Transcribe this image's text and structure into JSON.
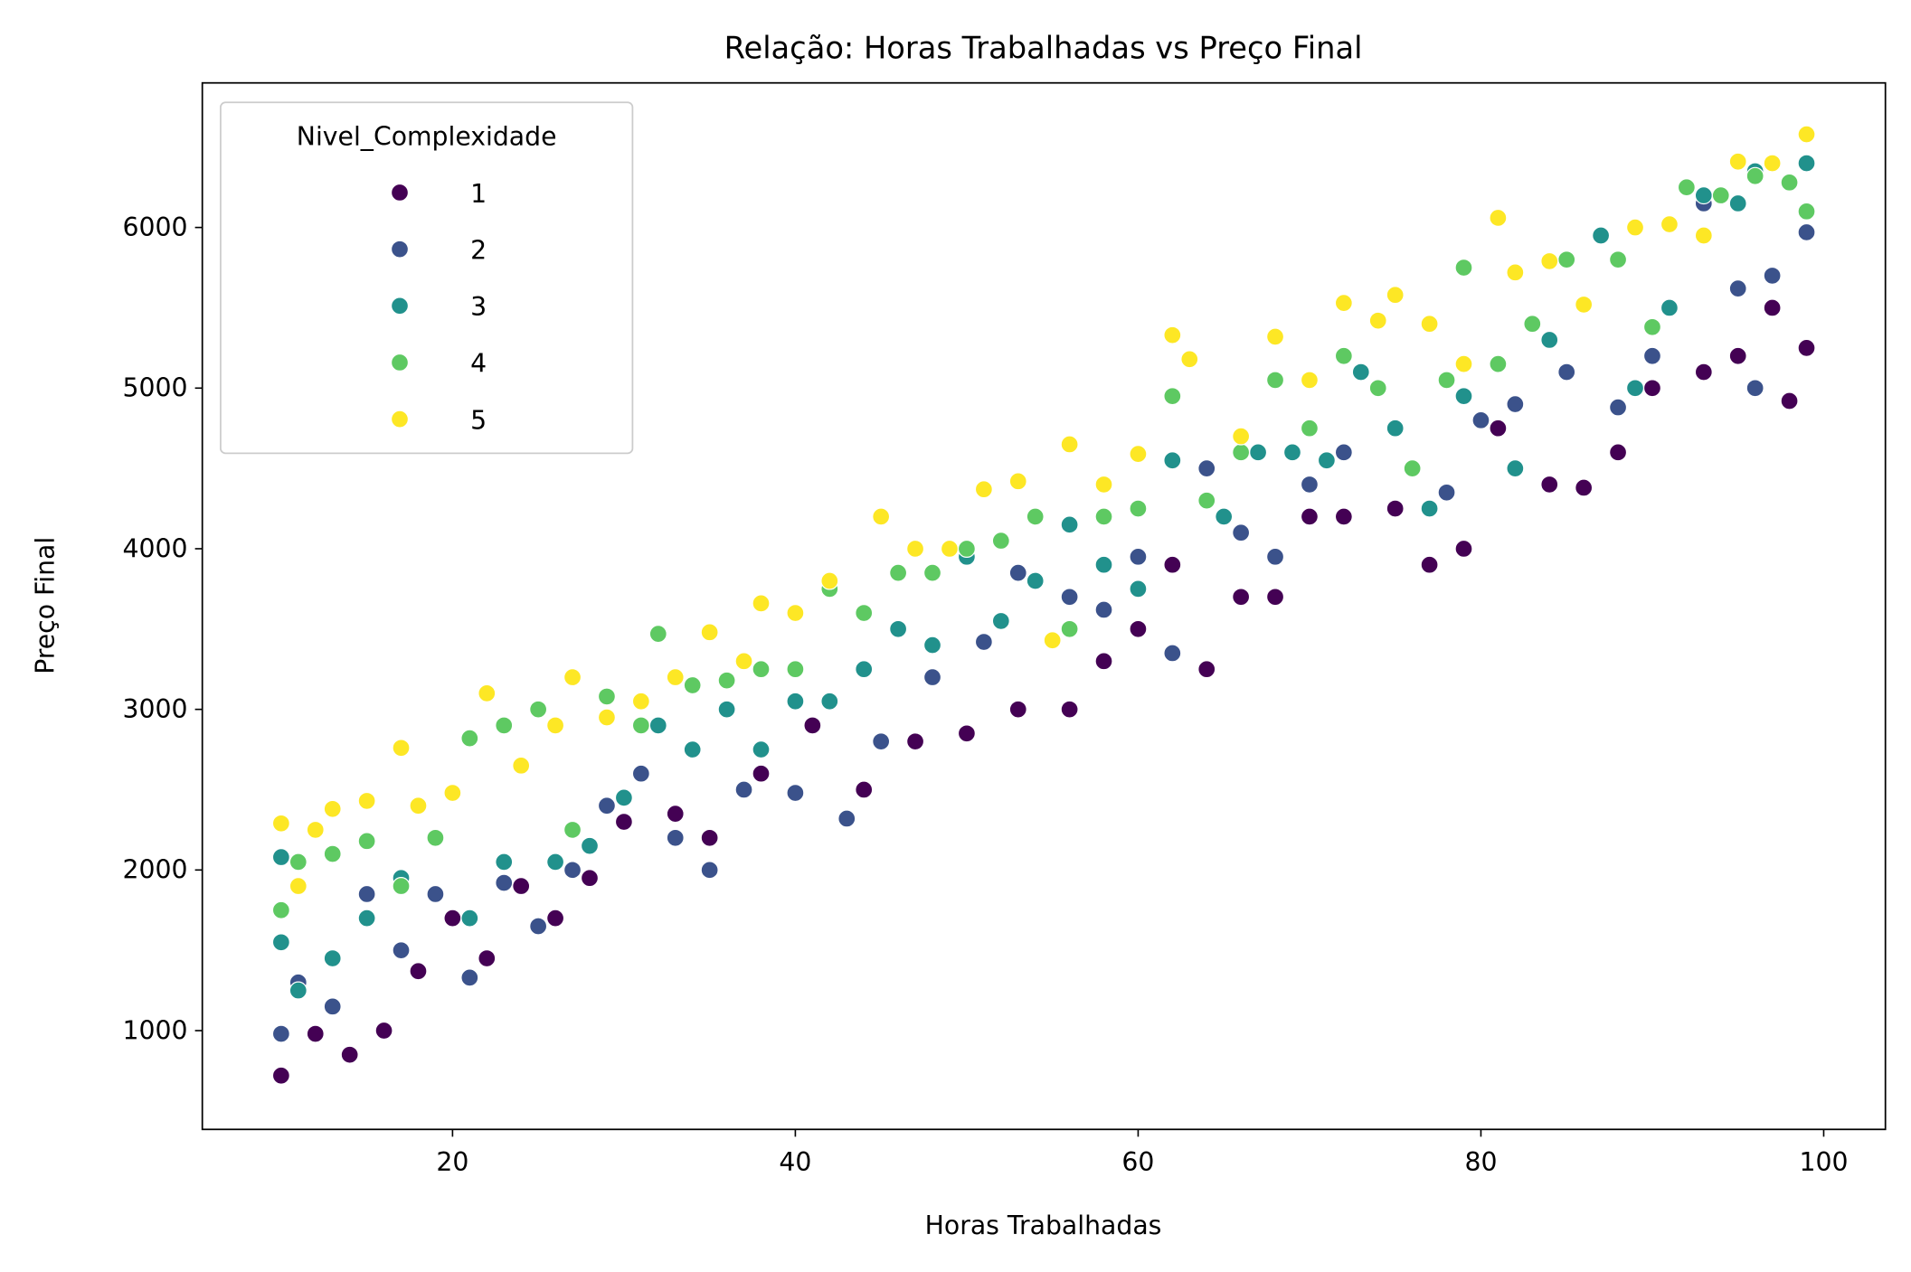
{
  "chart_data": {
    "type": "scatter",
    "title": "Relação: Horas Trabalhadas vs Preço Final",
    "xlabel": "Horas Trabalhadas",
    "ylabel": "Preço Final",
    "xlim": [
      5.4,
      103.6
    ],
    "ylim": [
      385,
      6900
    ],
    "xticks": [
      20,
      40,
      60,
      80,
      100
    ],
    "yticks": [
      1000,
      2000,
      3000,
      4000,
      5000,
      6000
    ],
    "grid": false,
    "legend": {
      "title": "Nivel_Complexidade",
      "placement": "top-left"
    },
    "series": [
      {
        "name": "1",
        "color": "#440154",
        "points": [
          [
            10,
            720
          ],
          [
            12,
            980
          ],
          [
            14,
            850
          ],
          [
            16,
            1000
          ],
          [
            18,
            1370
          ],
          [
            20,
            1700
          ],
          [
            22,
            1450
          ],
          [
            24,
            1900
          ],
          [
            26,
            1700
          ],
          [
            28,
            1950
          ],
          [
            30,
            2300
          ],
          [
            33,
            2350
          ],
          [
            35,
            2200
          ],
          [
            38,
            2600
          ],
          [
            41,
            2900
          ],
          [
            44,
            2500
          ],
          [
            47,
            2800
          ],
          [
            50,
            2850
          ],
          [
            53,
            3000
          ],
          [
            56,
            3000
          ],
          [
            58,
            3300
          ],
          [
            60,
            3500
          ],
          [
            62,
            3900
          ],
          [
            64,
            3250
          ],
          [
            66,
            3700
          ],
          [
            68,
            3700
          ],
          [
            70,
            4200
          ],
          [
            72,
            4200
          ],
          [
            75,
            4250
          ],
          [
            77,
            3900
          ],
          [
            79,
            4000
          ],
          [
            81,
            4750
          ],
          [
            84,
            4400
          ],
          [
            86,
            4380
          ],
          [
            88,
            4600
          ],
          [
            90,
            5000
          ],
          [
            93,
            5100
          ],
          [
            95,
            5200
          ],
          [
            97,
            5500
          ],
          [
            98,
            4920
          ],
          [
            99,
            5250
          ]
        ]
      },
      {
        "name": "2",
        "color": "#3b528b",
        "points": [
          [
            10,
            980
          ],
          [
            11,
            1300
          ],
          [
            13,
            1150
          ],
          [
            15,
            1850
          ],
          [
            17,
            1500
          ],
          [
            19,
            1850
          ],
          [
            21,
            1330
          ],
          [
            23,
            1920
          ],
          [
            25,
            1650
          ],
          [
            27,
            2000
          ],
          [
            29,
            2400
          ],
          [
            31,
            2600
          ],
          [
            33,
            2200
          ],
          [
            35,
            2000
          ],
          [
            37,
            2500
          ],
          [
            40,
            2480
          ],
          [
            43,
            2320
          ],
          [
            45,
            2800
          ],
          [
            48,
            3200
          ],
          [
            51,
            3420
          ],
          [
            53,
            3850
          ],
          [
            56,
            3700
          ],
          [
            58,
            3620
          ],
          [
            60,
            3950
          ],
          [
            62,
            3350
          ],
          [
            64,
            4500
          ],
          [
            66,
            4100
          ],
          [
            68,
            3950
          ],
          [
            70,
            4400
          ],
          [
            72,
            4600
          ],
          [
            75,
            4750
          ],
          [
            78,
            4350
          ],
          [
            80,
            4800
          ],
          [
            82,
            4900
          ],
          [
            85,
            5100
          ],
          [
            88,
            4880
          ],
          [
            90,
            5200
          ],
          [
            93,
            6150
          ],
          [
            95,
            5620
          ],
          [
            96,
            5000
          ],
          [
            97,
            5700
          ],
          [
            99,
            5970
          ]
        ]
      },
      {
        "name": "3",
        "color": "#21918c",
        "points": [
          [
            10,
            1550
          ],
          [
            10,
            2080
          ],
          [
            11,
            1250
          ],
          [
            13,
            1450
          ],
          [
            15,
            1700
          ],
          [
            17,
            1950
          ],
          [
            19,
            2200
          ],
          [
            21,
            1700
          ],
          [
            23,
            2050
          ],
          [
            26,
            2050
          ],
          [
            28,
            2150
          ],
          [
            30,
            2450
          ],
          [
            32,
            2900
          ],
          [
            34,
            2750
          ],
          [
            36,
            3000
          ],
          [
            38,
            2750
          ],
          [
            40,
            3050
          ],
          [
            42,
            3050
          ],
          [
            44,
            3250
          ],
          [
            46,
            3500
          ],
          [
            48,
            3400
          ],
          [
            50,
            3950
          ],
          [
            52,
            3550
          ],
          [
            54,
            3800
          ],
          [
            56,
            4150
          ],
          [
            58,
            3900
          ],
          [
            60,
            3750
          ],
          [
            62,
            4550
          ],
          [
            65,
            4200
          ],
          [
            67,
            4600
          ],
          [
            69,
            4600
          ],
          [
            71,
            4550
          ],
          [
            73,
            5100
          ],
          [
            75,
            4750
          ],
          [
            77,
            4250
          ],
          [
            79,
            4950
          ],
          [
            82,
            4500
          ],
          [
            84,
            5300
          ],
          [
            87,
            5950
          ],
          [
            89,
            5000
          ],
          [
            91,
            5500
          ],
          [
            93,
            6200
          ],
          [
            95,
            6150
          ],
          [
            96,
            6350
          ],
          [
            99,
            6400
          ]
        ]
      },
      {
        "name": "4",
        "color": "#5ec962",
        "points": [
          [
            10,
            1750
          ],
          [
            11,
            2050
          ],
          [
            13,
            2100
          ],
          [
            15,
            2180
          ],
          [
            17,
            1900
          ],
          [
            19,
            2200
          ],
          [
            21,
            2820
          ],
          [
            23,
            2900
          ],
          [
            25,
            3000
          ],
          [
            27,
            2250
          ],
          [
            29,
            3080
          ],
          [
            31,
            2900
          ],
          [
            32,
            3470
          ],
          [
            34,
            3150
          ],
          [
            36,
            3180
          ],
          [
            38,
            3250
          ],
          [
            40,
            3250
          ],
          [
            42,
            3750
          ],
          [
            44,
            3600
          ],
          [
            46,
            3850
          ],
          [
            48,
            3850
          ],
          [
            50,
            4000
          ],
          [
            52,
            4050
          ],
          [
            54,
            4200
          ],
          [
            56,
            3500
          ],
          [
            58,
            4200
          ],
          [
            60,
            4250
          ],
          [
            62,
            4950
          ],
          [
            64,
            4300
          ],
          [
            66,
            4600
          ],
          [
            68,
            5050
          ],
          [
            70,
            4750
          ],
          [
            72,
            5200
          ],
          [
            74,
            5000
          ],
          [
            76,
            4500
          ],
          [
            78,
            5050
          ],
          [
            79,
            5750
          ],
          [
            81,
            5150
          ],
          [
            83,
            5400
          ],
          [
            85,
            5800
          ],
          [
            88,
            5800
          ],
          [
            90,
            5380
          ],
          [
            92,
            6250
          ],
          [
            94,
            6200
          ],
          [
            96,
            6320
          ],
          [
            98,
            6280
          ],
          [
            99,
            6100
          ]
        ]
      },
      {
        "name": "5",
        "color": "#fde725",
        "points": [
          [
            10,
            2290
          ],
          [
            11,
            1900
          ],
          [
            12,
            2250
          ],
          [
            13,
            2380
          ],
          [
            15,
            2430
          ],
          [
            17,
            2760
          ],
          [
            18,
            2400
          ],
          [
            20,
            2480
          ],
          [
            22,
            3100
          ],
          [
            24,
            2650
          ],
          [
            26,
            2900
          ],
          [
            27,
            3200
          ],
          [
            29,
            2950
          ],
          [
            31,
            3050
          ],
          [
            33,
            3200
          ],
          [
            35,
            3480
          ],
          [
            37,
            3300
          ],
          [
            38,
            3660
          ],
          [
            40,
            3600
          ],
          [
            42,
            3800
          ],
          [
            45,
            4200
          ],
          [
            47,
            4000
          ],
          [
            49,
            4000
          ],
          [
            51,
            4370
          ],
          [
            53,
            4420
          ],
          [
            55,
            3430
          ],
          [
            56,
            4650
          ],
          [
            58,
            4400
          ],
          [
            60,
            4590
          ],
          [
            62,
            5330
          ],
          [
            63,
            5180
          ],
          [
            66,
            4700
          ],
          [
            68,
            5320
          ],
          [
            70,
            5050
          ],
          [
            72,
            5530
          ],
          [
            74,
            5420
          ],
          [
            75,
            5580
          ],
          [
            77,
            5400
          ],
          [
            79,
            5150
          ],
          [
            81,
            6060
          ],
          [
            82,
            5720
          ],
          [
            84,
            5790
          ],
          [
            86,
            5520
          ],
          [
            89,
            6000
          ],
          [
            91,
            6020
          ],
          [
            93,
            5950
          ],
          [
            95,
            6410
          ],
          [
            97,
            6400
          ],
          [
            99,
            6580
          ]
        ]
      }
    ]
  }
}
